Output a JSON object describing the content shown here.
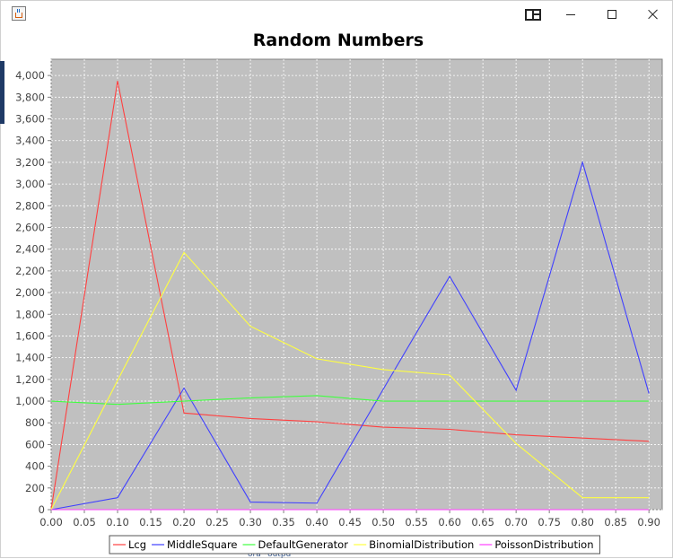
{
  "window": {
    "controls": {
      "snap": "snap-layout-icon",
      "minimize": "minimize-icon",
      "maximize": "maximize-icon",
      "close": "close-icon"
    },
    "app_icon": "java-cup-icon"
  },
  "background_fragment": "ora *outpu",
  "colors": {
    "plot_background": "#c0c0c0",
    "grid": "#ffffff",
    "Lcg": "#ff4040",
    "MiddleSquare": "#4040ff",
    "DefaultGenerator": "#40ff40",
    "BinomialDistribution": "#ffff40",
    "PoissonDistribution": "#ff40ff"
  },
  "chart_data": {
    "type": "line",
    "title": "Random Numbers",
    "xlabel": "",
    "ylabel": "",
    "x": [
      0.0,
      0.1,
      0.2,
      0.3,
      0.4,
      0.5,
      0.6,
      0.7,
      0.8,
      0.9
    ],
    "xlim": [
      0.0,
      0.92
    ],
    "ylim": [
      0,
      4150
    ],
    "x_ticks": [
      "0.00",
      "0.05",
      "0.10",
      "0.15",
      "0.20",
      "0.25",
      "0.30",
      "0.35",
      "0.40",
      "0.45",
      "0.50",
      "0.55",
      "0.60",
      "0.65",
      "0.70",
      "0.75",
      "0.80",
      "0.85",
      "0.90"
    ],
    "y_ticks": [
      "0",
      "200",
      "400",
      "600",
      "800",
      "1,000",
      "1,200",
      "1,400",
      "1,600",
      "1,800",
      "2,000",
      "2,200",
      "2,400",
      "2,600",
      "2,800",
      "3,000",
      "3,200",
      "3,400",
      "3,600",
      "3,800",
      "4,000"
    ],
    "grid": true,
    "legend_position": "bottom",
    "series": [
      {
        "name": "Lcg",
        "values": [
          0,
          3950,
          890,
          840,
          810,
          760,
          740,
          690,
          660,
          630
        ]
      },
      {
        "name": "MiddleSquare",
        "values": [
          0,
          110,
          1120,
          70,
          60,
          1110,
          2150,
          1100,
          3200,
          1070
        ]
      },
      {
        "name": "DefaultGenerator",
        "values": [
          1000,
          970,
          1000,
          1030,
          1050,
          1000,
          1000,
          1000,
          1000,
          1000
        ]
      },
      {
        "name": "BinomialDistribution",
        "values": [
          0,
          1190,
          2370,
          1690,
          1390,
          1290,
          1240,
          610,
          110,
          110
        ]
      },
      {
        "name": "PoissonDistribution",
        "values": [
          0,
          0,
          0,
          0,
          0,
          0,
          0,
          0,
          0,
          0
        ]
      }
    ]
  }
}
